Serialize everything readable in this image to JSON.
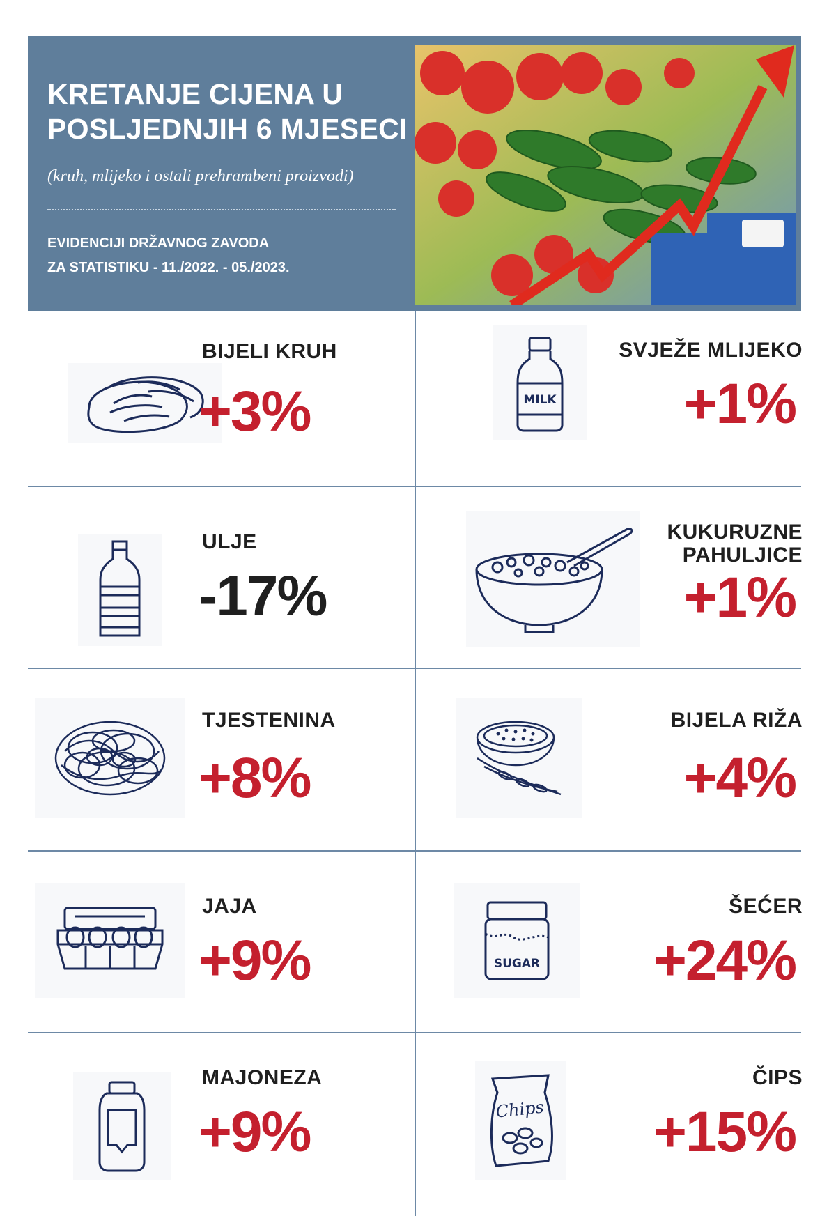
{
  "header": {
    "title_line1": "KRETANJE CIJENA U",
    "title_line2": "POSLJEDNJIH 6 MJESECI",
    "subtitle": "(kruh, mlijeko i ostali prehrambeni proizvodi)",
    "source_line1": "EVIDENCIJI DRŽAVNOG ZAVODA",
    "source_line2": "ZA STATISTIKU - 11./2022. - 05./2023."
  },
  "items": [
    {
      "name": "BIJELI KRUH",
      "change": "+3%",
      "icon": "bread-icon"
    },
    {
      "name": "SVJEŽE MLIJEKO",
      "change": "+1%",
      "icon": "milk-bottle-icon",
      "icon_text": "MILK"
    },
    {
      "name": "ULJE",
      "change": "-17%",
      "icon": "oil-bottle-icon"
    },
    {
      "name_line1": "KUKURUZNE",
      "name_line2": "PAHULJICE",
      "change": "+1%",
      "icon": "cereal-bowl-icon"
    },
    {
      "name": "TJESTENINA",
      "change": "+8%",
      "icon": "pasta-icon"
    },
    {
      "name": "BIJELA RIŽA",
      "change": "+4%",
      "icon": "rice-bowl-icon"
    },
    {
      "name": "JAJA",
      "change": "+9%",
      "icon": "egg-carton-icon"
    },
    {
      "name": "ŠEĆER",
      "change": "+24%",
      "icon": "sugar-jar-icon",
      "icon_text": "SUGAR"
    },
    {
      "name": "MAJONEZA",
      "change": "+9%",
      "icon": "mayonnaise-bottle-icon"
    },
    {
      "name": "ČIPS",
      "change": "+15%",
      "icon": "chips-bag-icon",
      "icon_text": "Chips"
    }
  ],
  "colors": {
    "header_bg": "#5f7e9b",
    "positive": "#c4202e",
    "negative": "#1f1f1f",
    "icon_stroke": "#1c2b5a"
  }
}
